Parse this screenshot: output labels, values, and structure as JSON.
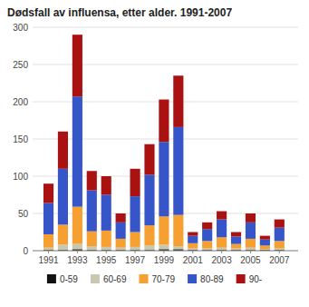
{
  "chart_data": {
    "type": "bar",
    "title": "Dødsfall av influensa, etter alder. 1991-2007",
    "x": [
      1991,
      1992,
      1993,
      1994,
      1995,
      1996,
      1997,
      1998,
      1999,
      2000,
      2001,
      2002,
      2003,
      2004,
      2005,
      2006,
      2007
    ],
    "series": [
      {
        "name": "0-59",
        "color": "#111111",
        "values": [
          1,
          1,
          2,
          1,
          1,
          1,
          1,
          1,
          2,
          2,
          1,
          1,
          1,
          1,
          1,
          1,
          1
        ]
      },
      {
        "name": "60-69",
        "color": "#c8c8b0",
        "values": [
          3,
          7,
          7,
          5,
          4,
          3,
          4,
          6,
          6,
          4,
          2,
          2,
          3,
          2,
          3,
          1,
          2
        ]
      },
      {
        "name": "70-79",
        "color": "#f5a030",
        "values": [
          18,
          27,
          50,
          20,
          22,
          12,
          20,
          27,
          38,
          42,
          7,
          10,
          14,
          6,
          12,
          5,
          10
        ]
      },
      {
        "name": "80-89",
        "color": "#3555c8",
        "values": [
          42,
          75,
          148,
          55,
          48,
          22,
          48,
          68,
          100,
          118,
          10,
          16,
          24,
          10,
          22,
          8,
          18
        ]
      },
      {
        "name": "90-",
        "color": "#aa1111",
        "values": [
          26,
          50,
          83,
          26,
          25,
          12,
          37,
          41,
          57,
          69,
          5,
          9,
          11,
          6,
          12,
          5,
          11
        ]
      }
    ],
    "stacked": true,
    "xlim": [
      1989.9,
      2008.3
    ],
    "xticks": [
      1991,
      1993,
      1995,
      1997,
      1999,
      2001,
      2003,
      2005,
      2007
    ],
    "ylim": [
      0,
      300
    ],
    "yticks": [
      0,
      50,
      100,
      150,
      200,
      250,
      300
    ],
    "grid": true,
    "legend": "bottom"
  }
}
